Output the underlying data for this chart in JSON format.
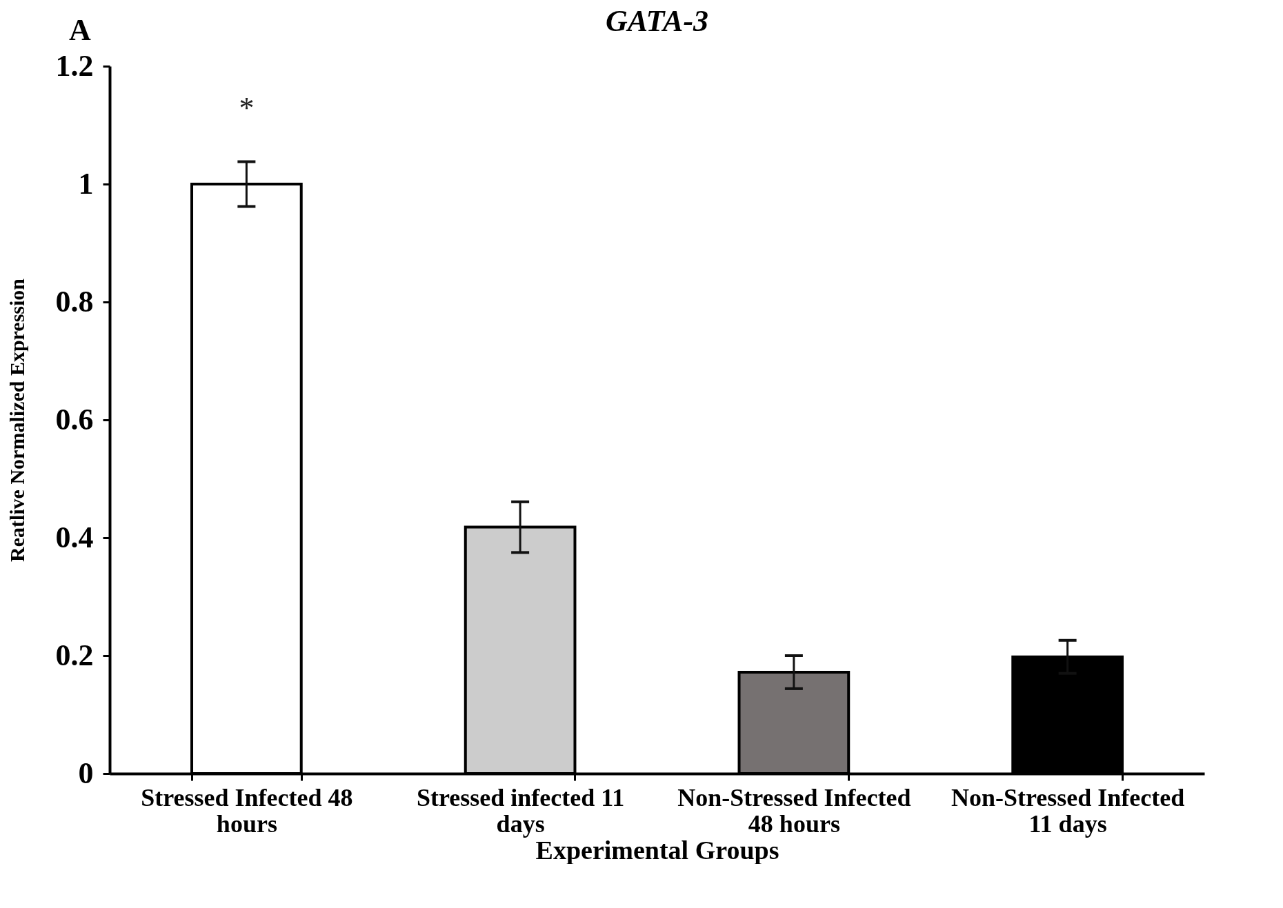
{
  "chart_data": {
    "type": "bar",
    "title": "GATA-3",
    "xlabel": "Experimental Groups",
    "ylabel": "Reatlive Normalized Expression",
    "categories": [
      "Stressed Infected 48 hours",
      "Stressed infected 11 days",
      "Non-Stressed Infected 48 hours",
      "Non-Stressed Infected 11 days"
    ],
    "values": [
      1.0,
      0.418,
      0.172,
      0.198
    ],
    "errors": [
      0.038,
      0.043,
      0.028,
      0.028
    ],
    "colors": [
      "#ffffff",
      "#cccccc",
      "#767171",
      "#000000"
    ],
    "ylim": [
      0,
      1.2
    ],
    "yticks": [
      0,
      0.2,
      0.4,
      0.6,
      0.8,
      1,
      1.2
    ],
    "grid": false,
    "legend": false,
    "annotations": [
      "A",
      "*"
    ]
  }
}
